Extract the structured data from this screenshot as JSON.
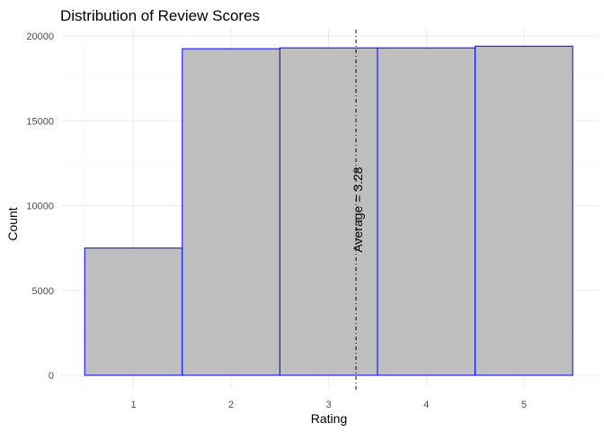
{
  "chart_data": {
    "type": "bar",
    "title": "Distribution of Review Scores",
    "xlabel": "Rating",
    "ylabel": "Count",
    "categories": [
      "1",
      "2",
      "3",
      "4",
      "5"
    ],
    "values": [
      7500,
      19250,
      19300,
      19300,
      19400
    ],
    "ylim": [
      0,
      20500
    ],
    "yticks": [
      0,
      5000,
      10000,
      15000,
      20000
    ],
    "ytick_labels": [
      "0",
      "5000",
      "10000",
      "15000",
      "20000"
    ],
    "average_line": {
      "value": 3.28,
      "label": "Average = 3.28"
    },
    "grid": true,
    "colors": {
      "bar_fill": "#bebebe",
      "bar_edge": "#0000ff",
      "grid": "#ebebeb"
    }
  }
}
